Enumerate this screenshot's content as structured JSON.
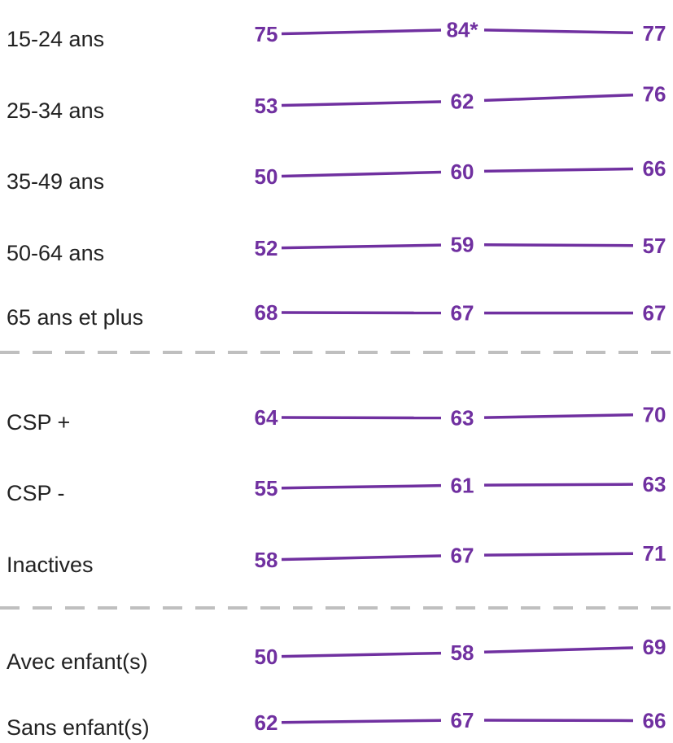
{
  "colors": {
    "series": "#7030A0",
    "separator": "#BFBFBF",
    "label": "#222222"
  },
  "chart_data": {
    "type": "line",
    "title": "",
    "x": [
      "",
      "",
      ""
    ],
    "ylim": [
      40,
      95
    ],
    "groups_separated_after": [
      4,
      7
    ],
    "rows": [
      {
        "label": "15-24 ans",
        "values": [
          75,
          84,
          77
        ],
        "value_labels": [
          "75",
          "84*",
          "77"
        ]
      },
      {
        "label": "25-34 ans",
        "values": [
          53,
          62,
          76
        ],
        "value_labels": [
          "53",
          "62",
          "76"
        ]
      },
      {
        "label": "35-49 ans",
        "values": [
          50,
          60,
          66
        ],
        "value_labels": [
          "50",
          "60",
          "66"
        ]
      },
      {
        "label": "50-64 ans",
        "values": [
          52,
          59,
          57
        ],
        "value_labels": [
          "52",
          "59",
          "57"
        ]
      },
      {
        "label": "65 ans et plus",
        "values": [
          68,
          67,
          67
        ],
        "value_labels": [
          "68",
          "67",
          "67"
        ]
      },
      {
        "label": "CSP +",
        "values": [
          64,
          63,
          70
        ],
        "value_labels": [
          "64",
          "63",
          "70"
        ]
      },
      {
        "label": "CSP -",
        "values": [
          55,
          61,
          63
        ],
        "value_labels": [
          "55",
          "61",
          "63"
        ]
      },
      {
        "label": "Inactives",
        "values": [
          58,
          67,
          71
        ],
        "value_labels": [
          "58",
          "67",
          "71"
        ]
      },
      {
        "label": "Avec enfant(s)",
        "values": [
          50,
          58,
          69
        ],
        "value_labels": [
          "50",
          "58",
          "69"
        ]
      },
      {
        "label": "Sans enfant(s)",
        "values": [
          62,
          67,
          66
        ],
        "value_labels": [
          "62",
          "67",
          "66"
        ]
      }
    ]
  }
}
